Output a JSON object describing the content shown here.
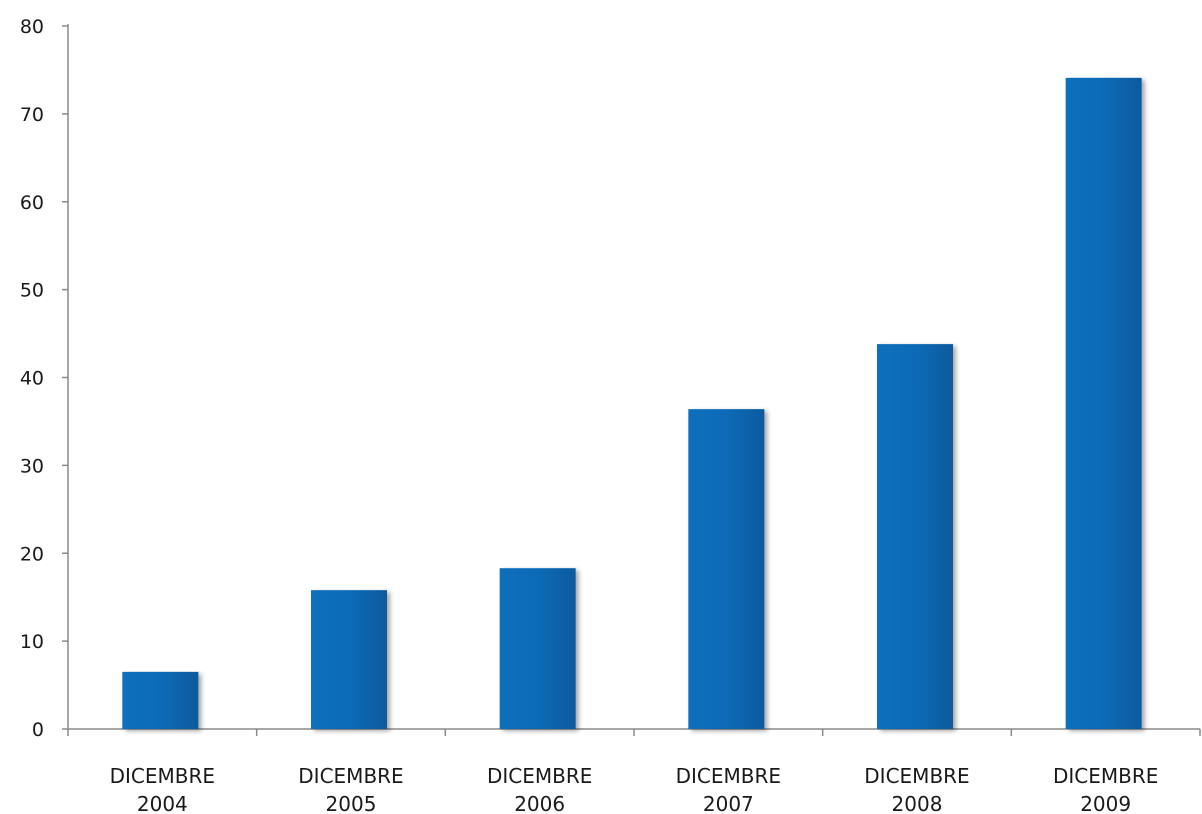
{
  "chart_data": {
    "type": "bar",
    "categories": [
      [
        "DICEMBRE",
        "2004"
      ],
      [
        "DICEMBRE",
        "2005"
      ],
      [
        "DICEMBRE",
        "2006"
      ],
      [
        "DICEMBRE",
        "2007"
      ],
      [
        "DICEMBRE",
        "2008"
      ],
      [
        "DICEMBRE",
        "2009"
      ]
    ],
    "values": [
      6.5,
      15.8,
      18.3,
      36.4,
      43.8,
      74.1
    ],
    "ylim": [
      0,
      80
    ],
    "yticks": [
      "0",
      "10",
      "20",
      "30",
      "40",
      "50",
      "60",
      "70",
      "80"
    ],
    "bar_color": "#0a6bb8",
    "grid": false,
    "legend": "none",
    "title": "",
    "xlabel": "",
    "ylabel": ""
  }
}
